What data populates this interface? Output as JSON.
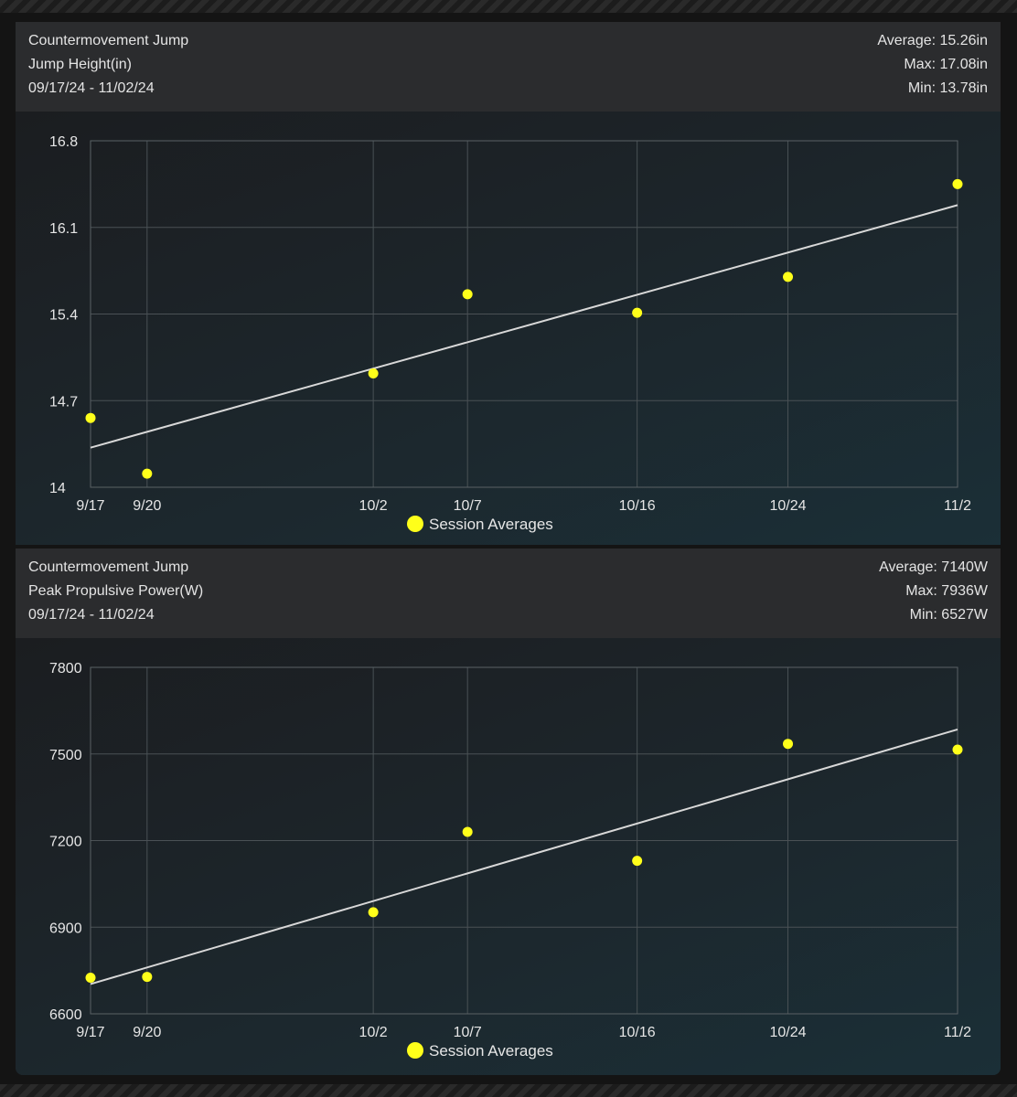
{
  "chart_data": [
    {
      "type": "scatter",
      "test_name": "Countermovement Jump",
      "metric": "Jump Height(in)",
      "date_range": "09/17/24 - 11/02/24",
      "stats": {
        "average": "Average: 15.26in",
        "max": "Max: 17.08in",
        "min": "Min: 13.78in"
      },
      "x_day": [
        0,
        3,
        15,
        20,
        29,
        37,
        46
      ],
      "x_tick_labels": [
        "9/17",
        "9/20",
        "10/2",
        "10/7",
        "10/16",
        "10/24",
        "11/2"
      ],
      "y_ticks": [
        14,
        14.7,
        15.4,
        16.1,
        16.8
      ],
      "y_tick_labels": [
        "14",
        "14.7",
        "15.4",
        "16.1",
        "16.8"
      ],
      "ylim": [
        14,
        16.8
      ],
      "values": [
        14.56,
        14.11,
        14.92,
        15.56,
        15.41,
        15.7,
        16.45
      ],
      "trendline": [
        14.32,
        16.28
      ],
      "legend": "Session Averages",
      "color": "#ffff1a"
    },
    {
      "type": "scatter",
      "test_name": "Countermovement Jump",
      "metric": "Peak Propulsive Power(W)",
      "date_range": "09/17/24 - 11/02/24",
      "stats": {
        "average": "Average: 7140W",
        "max": "Max: 7936W",
        "min": "Min: 6527W"
      },
      "x_day": [
        0,
        3,
        15,
        20,
        29,
        37,
        46
      ],
      "x_tick_labels": [
        "9/17",
        "9/20",
        "10/2",
        "10/7",
        "10/16",
        "10/24",
        "11/2"
      ],
      "y_ticks": [
        6600,
        6900,
        7200,
        7500,
        7800
      ],
      "y_tick_labels": [
        "6600",
        "6900",
        "7200",
        "7500",
        "7800"
      ],
      "ylim": [
        6600,
        7800
      ],
      "values": [
        6725,
        6728,
        6952,
        7230,
        7130,
        7535,
        7515
      ],
      "trendline": [
        6703,
        7585
      ],
      "legend": "Session Averages",
      "color": "#ffff1a"
    }
  ]
}
